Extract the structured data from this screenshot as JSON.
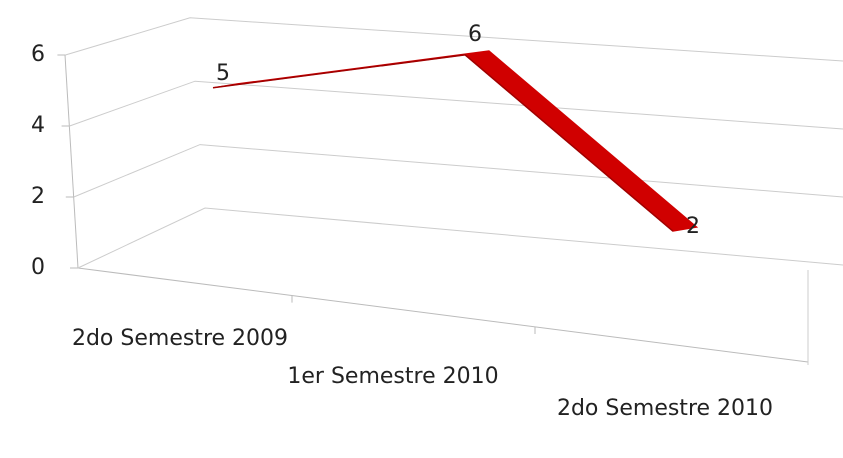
{
  "chart_data": {
    "type": "line3d",
    "categories": [
      "2do Semestre 2009",
      "1er Semestre 2010",
      "2do Semestre 2010"
    ],
    "values": [
      5,
      6,
      2
    ],
    "color": "#d00000",
    "ylim": [
      0,
      6
    ],
    "yticks": [
      0,
      2,
      4,
      6
    ],
    "grid": true
  }
}
